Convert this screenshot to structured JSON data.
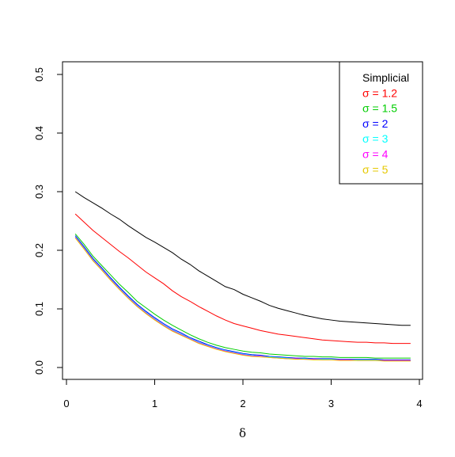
{
  "chart_data": {
    "type": "line",
    "xlabel": "δ",
    "ylabel": "",
    "xlim": [
      0,
      4
    ],
    "ylim": [
      0,
      0.5
    ],
    "x_ticks": [
      "0",
      "1",
      "2",
      "3",
      "4"
    ],
    "y_ticks": [
      "0.0",
      "0.1",
      "0.2",
      "0.3",
      "0.4",
      "0.5"
    ],
    "grid": false,
    "legend_position": "top-right",
    "x": [
      0.1,
      0.2,
      0.3,
      0.4,
      0.5,
      0.6,
      0.7,
      0.8,
      0.9,
      1.0,
      1.1,
      1.2,
      1.3,
      1.4,
      1.5,
      1.6,
      1.7,
      1.8,
      1.9,
      2.0,
      2.1,
      2.2,
      2.3,
      2.4,
      2.5,
      2.6,
      2.7,
      2.8,
      2.9,
      3.0,
      3.1,
      3.2,
      3.3,
      3.4,
      3.5,
      3.6,
      3.7,
      3.8,
      3.9
    ],
    "series": [
      {
        "name": "Simplicial",
        "color": "#000000",
        "values": [
          0.3,
          0.29,
          0.281,
          0.272,
          0.262,
          0.253,
          0.242,
          0.232,
          0.222,
          0.214,
          0.205,
          0.196,
          0.185,
          0.176,
          0.165,
          0.156,
          0.147,
          0.138,
          0.133,
          0.125,
          0.119,
          0.113,
          0.106,
          0.101,
          0.097,
          0.093,
          0.089,
          0.086,
          0.083,
          0.081,
          0.079,
          0.078,
          0.077,
          0.076,
          0.075,
          0.074,
          0.073,
          0.072,
          0.072
        ]
      },
      {
        "name": "1.2",
        "color": "#ff0000",
        "values": [
          0.262,
          0.248,
          0.234,
          0.222,
          0.21,
          0.198,
          0.187,
          0.175,
          0.163,
          0.153,
          0.143,
          0.131,
          0.121,
          0.113,
          0.104,
          0.096,
          0.088,
          0.081,
          0.075,
          0.071,
          0.067,
          0.063,
          0.06,
          0.057,
          0.055,
          0.053,
          0.051,
          0.049,
          0.047,
          0.046,
          0.045,
          0.044,
          0.043,
          0.043,
          0.042,
          0.042,
          0.041,
          0.041,
          0.041
        ]
      },
      {
        "name": "1.5",
        "color": "#00cd00",
        "values": [
          0.228,
          0.21,
          0.19,
          0.174,
          0.158,
          0.142,
          0.128,
          0.113,
          0.102,
          0.091,
          0.081,
          0.072,
          0.064,
          0.056,
          0.049,
          0.043,
          0.038,
          0.034,
          0.031,
          0.028,
          0.026,
          0.025,
          0.023,
          0.022,
          0.021,
          0.02,
          0.019,
          0.019,
          0.018,
          0.018,
          0.017,
          0.017,
          0.017,
          0.017,
          0.016,
          0.016,
          0.016,
          0.016,
          0.016
        ]
      },
      {
        "name": "2",
        "color": "#0000ff",
        "values": [
          0.225,
          0.206,
          0.186,
          0.17,
          0.153,
          0.137,
          0.122,
          0.108,
          0.096,
          0.085,
          0.075,
          0.066,
          0.059,
          0.051,
          0.045,
          0.039,
          0.034,
          0.03,
          0.027,
          0.024,
          0.022,
          0.021,
          0.019,
          0.018,
          0.017,
          0.016,
          0.016,
          0.015,
          0.015,
          0.015,
          0.014,
          0.014,
          0.014,
          0.014,
          0.014,
          0.013,
          0.013,
          0.013,
          0.013
        ]
      },
      {
        "name": "3",
        "color": "#00ffff",
        "values": [
          0.223,
          0.204,
          0.184,
          0.168,
          0.151,
          0.135,
          0.12,
          0.106,
          0.094,
          0.083,
          0.073,
          0.064,
          0.057,
          0.05,
          0.043,
          0.038,
          0.033,
          0.029,
          0.026,
          0.023,
          0.021,
          0.019,
          0.018,
          0.017,
          0.016,
          0.015,
          0.015,
          0.014,
          0.014,
          0.014,
          0.013,
          0.013,
          0.013,
          0.013,
          0.013,
          0.012,
          0.012,
          0.012,
          0.012
        ]
      },
      {
        "name": "4",
        "color": "#ff00ff",
        "values": [
          0.222,
          0.203,
          0.183,
          0.167,
          0.15,
          0.134,
          0.119,
          0.105,
          0.093,
          0.082,
          0.072,
          0.063,
          0.056,
          0.049,
          0.042,
          0.037,
          0.032,
          0.028,
          0.025,
          0.022,
          0.02,
          0.019,
          0.017,
          0.016,
          0.015,
          0.015,
          0.014,
          0.014,
          0.013,
          0.013,
          0.013,
          0.013,
          0.012,
          0.012,
          0.012,
          0.012,
          0.012,
          0.012,
          0.012
        ]
      },
      {
        "name": "5",
        "color": "#e6c800",
        "values": [
          0.221,
          0.202,
          0.182,
          0.166,
          0.149,
          0.133,
          0.118,
          0.104,
          0.092,
          0.081,
          0.071,
          0.062,
          0.055,
          0.048,
          0.041,
          0.036,
          0.031,
          0.027,
          0.024,
          0.021,
          0.019,
          0.018,
          0.017,
          0.016,
          0.015,
          0.014,
          0.014,
          0.013,
          0.013,
          0.013,
          0.012,
          0.012,
          0.012,
          0.012,
          0.012,
          0.011,
          0.011,
          0.011,
          0.011
        ]
      }
    ],
    "legend": [
      {
        "label": "Simplicial",
        "color": "#000000"
      },
      {
        "label": "σ = 1.2",
        "color": "#ff0000"
      },
      {
        "label": "σ = 1.5",
        "color": "#00cd00"
      },
      {
        "label": "σ = 2",
        "color": "#0000ff"
      },
      {
        "label": "σ = 3",
        "color": "#00ffff"
      },
      {
        "label": "σ = 4",
        "color": "#ff00ff"
      },
      {
        "label": "σ = 5",
        "color": "#e6c800"
      }
    ]
  }
}
